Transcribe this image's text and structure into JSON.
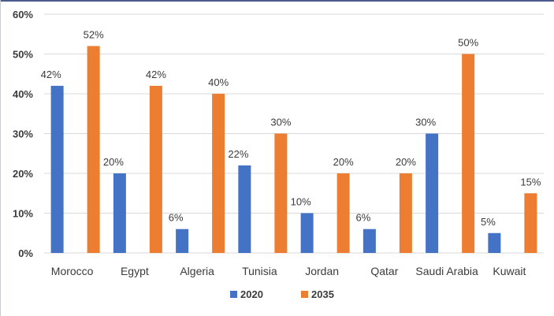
{
  "chart_data": {
    "type": "bar",
    "categories": [
      "Morocco",
      "Egypt",
      "Algeria",
      "Tunisia",
      "Jordan",
      "Qatar",
      "Saudi Arabia",
      "Kuwait"
    ],
    "series": [
      {
        "name": "2020",
        "values": [
          42,
          20,
          6,
          22,
          10,
          6,
          30,
          5
        ],
        "color": "#4472c4",
        "labels": [
          "42%",
          "20%",
          "6%",
          "22%",
          "10%",
          "6%",
          "30%",
          "5%"
        ]
      },
      {
        "name": "2035",
        "values": [
          52,
          42,
          40,
          30,
          20,
          20,
          50,
          15
        ],
        "color": "#ed7d31",
        "labels": [
          "52%",
          "42%",
          "40%",
          "30%",
          "20%",
          "20%",
          "50%",
          "15%"
        ]
      }
    ],
    "ylim": [
      0,
      60
    ],
    "yticks": [
      0,
      10,
      20,
      30,
      40,
      50,
      60
    ],
    "ytick_labels": [
      "0%",
      "10%",
      "20%",
      "30%",
      "40%",
      "50%",
      "60%"
    ],
    "grid": true,
    "legend_position": "bottom",
    "title": "",
    "xlabel": "",
    "ylabel": ""
  },
  "colors": {
    "gridline": "#d9d9d9",
    "frame": "#4a5b8c"
  }
}
